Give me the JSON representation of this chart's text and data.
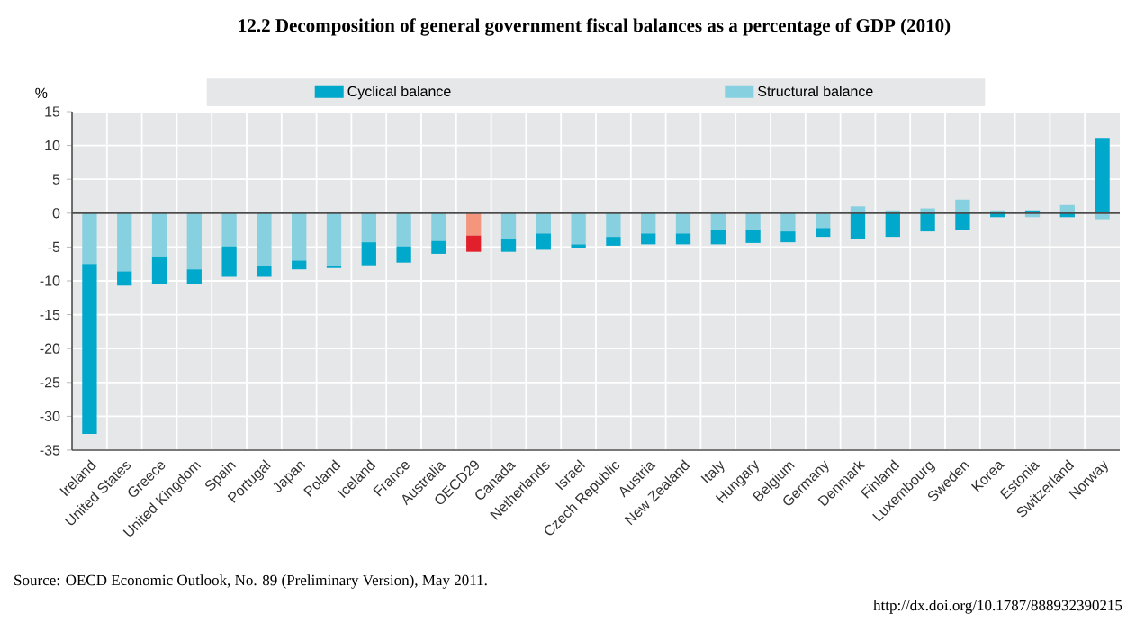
{
  "chart_data": {
    "type": "bar",
    "title": "12.2 Decomposition of general government fiscal balances as a percentage of GDP (2010)",
    "ylabel": "%",
    "categories": [
      "Ireland",
      "United States",
      "Greece",
      "United Kingdom",
      "Spain",
      "Portugal",
      "Japan",
      "Poland",
      "Iceland",
      "France",
      "Australia",
      "OECD29",
      "Canada",
      "Netherlands",
      "Israel",
      "Czech Republic",
      "Austria",
      "New Zealand",
      "Italy",
      "Hungary",
      "Belgium",
      "Germany",
      "Denmark",
      "Finland",
      "Luxembourg",
      "Sweden",
      "Korea",
      "Estonia",
      "Switzerland",
      "Norway"
    ],
    "stacked": true,
    "series": [
      {
        "name": "Structural balance",
        "color": "#86D0E0",
        "colors": [
          "#86D0E0",
          "#86D0E0",
          "#86D0E0",
          "#86D0E0",
          "#86D0E0",
          "#86D0E0",
          "#86D0E0",
          "#86D0E0",
          "#86D0E0",
          "#86D0E0",
          "#86D0E0",
          "#F4957E",
          "#86D0E0",
          "#86D0E0",
          "#86D0E0",
          "#86D0E0",
          "#86D0E0",
          "#86D0E0",
          "#86D0E0",
          "#86D0E0",
          "#86D0E0",
          "#86D0E0",
          "#86D0E0",
          "#86D0E0",
          "#86D0E0",
          "#86D0E0",
          "#86D0E0",
          "#86D0E0",
          "#86D0E0",
          "#86D0E0"
        ],
        "values": [
          -7.5,
          -8.6,
          -6.4,
          -8.3,
          -4.9,
          -7.8,
          -7.0,
          -7.8,
          -4.3,
          -4.9,
          -4.1,
          -3.3,
          -3.8,
          -3.0,
          -4.6,
          -3.5,
          -3.0,
          -3.0,
          -2.5,
          -2.5,
          -2.7,
          -2.2,
          1.0,
          0.4,
          0.7,
          2.0,
          0.4,
          -0.6,
          1.2,
          -0.9
        ]
      },
      {
        "name": "Cyclical balance",
        "color": "#00A8CC",
        "colors": [
          "#00A8CC",
          "#00A8CC",
          "#00A8CC",
          "#00A8CC",
          "#00A8CC",
          "#00A8CC",
          "#00A8CC",
          "#00A8CC",
          "#00A8CC",
          "#00A8CC",
          "#00A8CC",
          "#E2202B",
          "#00A8CC",
          "#00A8CC",
          "#00A8CC",
          "#00A8CC",
          "#00A8CC",
          "#00A8CC",
          "#00A8CC",
          "#00A8CC",
          "#00A8CC",
          "#00A8CC",
          "#00A8CC",
          "#00A8CC",
          "#00A8CC",
          "#00A8CC",
          "#00A8CC",
          "#00A8CC",
          "#00A8CC",
          "#00A8CC"
        ],
        "values": [
          -25.1,
          -2.1,
          -4.0,
          -2.1,
          -4.5,
          -1.6,
          -1.3,
          -0.3,
          -3.4,
          -2.4,
          -1.9,
          -2.4,
          -1.9,
          -2.4,
          -0.5,
          -1.3,
          -1.6,
          -1.6,
          -2.1,
          -1.9,
          -1.6,
          -1.3,
          -3.8,
          -3.5,
          -2.7,
          -2.5,
          -0.6,
          0.4,
          -0.6,
          11.1
        ]
      }
    ],
    "ylim": [
      -35,
      15
    ],
    "yticks": [
      -35,
      -30,
      -25,
      -20,
      -15,
      -10,
      -5,
      0,
      5,
      10,
      15
    ],
    "grid": true,
    "legend": "top",
    "annotations": [
      "Source: OECD Economic Outlook, No. 89 (Preliminary Version), May 2011.",
      "http://dx.doi.org/10.1787/888932390215"
    ]
  }
}
